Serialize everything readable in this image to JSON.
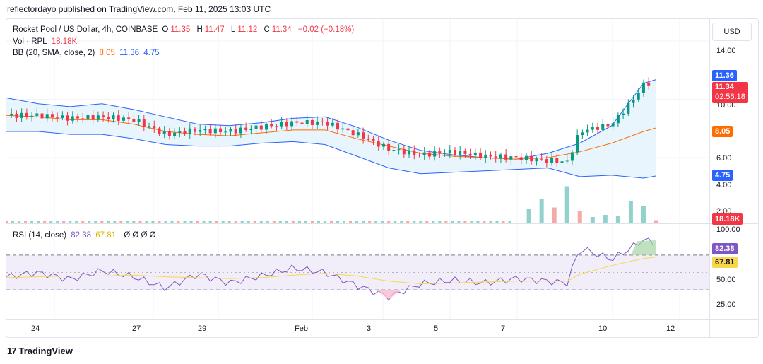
{
  "publisher": "reflectordayo published on TradingView.com, Feb 11, 2025 13:03 UTC",
  "legend": {
    "symbol": "Rocket Pool / US Dollar, 4h, COINBASE",
    "o_label": "O",
    "o_value": "11.35",
    "h_label": "H",
    "h_value": "11.47",
    "l_label": "L",
    "l_value": "11.12",
    "c_label": "C",
    "c_value": "11.34",
    "change": "−0.02 (−0.18%)",
    "vol_label": "Vol · RPL",
    "vol_value": "18.18K",
    "bb_label": "BB (20, SMA, close, 2)",
    "bb_basis": "8.05",
    "bb_upper": "11.36",
    "bb_lower": "4.75",
    "rsi_label": "RSI (14, close)",
    "rsi_value": "82.38",
    "rsi_ma": "67.81",
    "rsi_extra": "Ø  Ø  Ø  Ø"
  },
  "currency_button": "USD",
  "price_axis": {
    "ticks": [
      "14.00",
      "10.00",
      "6.00",
      "4.00",
      "2.00"
    ]
  },
  "rsi_axis": {
    "ticks": [
      "100.00",
      "50.00",
      "25.00"
    ]
  },
  "time_axis": [
    "24",
    "27",
    "29",
    "Feb",
    "3",
    "5",
    "7",
    "10",
    "12"
  ],
  "tags": {
    "bb_upper": "11.36",
    "last_price": "11.34",
    "countdown": "02:56:18",
    "bb_basis": "8.05",
    "bb_lower": "4.75",
    "volume": "18.18K",
    "rsi": "82.38",
    "rsi_ma": "67.81"
  },
  "colors": {
    "up": "#089981",
    "down": "#f23645",
    "bb_band": "#2962ff",
    "bb_basis": "#ff6d00",
    "rsi_line": "#7e57c2",
    "rsi_ma": "#f7d84a",
    "rsi_zone": "#ede7f6",
    "band_fill": "#e3f2fd"
  },
  "footer": {
    "logo": "17",
    "brand": "TradingView"
  },
  "chart_data": {
    "type": "line",
    "title": "Rocket Pool / US Dollar, 4h, COINBASE",
    "price_axis_range": [
      1.5,
      15.5
    ],
    "x_labels": [
      "24",
      "27",
      "29",
      "Feb",
      "3",
      "5",
      "7",
      "10",
      "12"
    ],
    "series": [
      {
        "name": "BB (20, SMA, close, 2)",
        "x": [
          0,
          5,
          10,
          15,
          20,
          25,
          30,
          35,
          40,
          45,
          50,
          55,
          60,
          65,
          70,
          75,
          80,
          85,
          90,
          95,
          100,
          102
        ],
        "values": [
          10.1,
          9.7,
          9.5,
          9.7,
          9.3,
          8.8,
          8.3,
          8.2,
          8.4,
          8.7,
          8.8,
          8.1,
          7.2,
          6.5,
          6.2,
          6.0,
          5.9,
          6.3,
          7.0,
          8.2,
          11.1,
          11.36
        ]
      },
      {
        "name": "BB basis",
        "x": [
          0,
          5,
          10,
          15,
          20,
          25,
          30,
          35,
          40,
          45,
          50,
          55,
          60,
          65,
          70,
          75,
          80,
          85,
          90,
          95,
          100,
          102
        ],
        "values": [
          8.9,
          8.8,
          8.6,
          8.6,
          8.3,
          7.8,
          7.6,
          7.5,
          7.7,
          7.9,
          7.9,
          7.3,
          6.8,
          6.3,
          6.1,
          6.0,
          5.9,
          6.0,
          6.4,
          7.0,
          7.8,
          8.05
        ]
      },
      {
        "name": "BB lower",
        "x": [
          0,
          5,
          10,
          15,
          20,
          25,
          30,
          35,
          40,
          45,
          50,
          55,
          60,
          65,
          70,
          75,
          80,
          85,
          90,
          95,
          100,
          102
        ],
        "values": [
          7.8,
          7.8,
          7.6,
          7.6,
          7.3,
          6.9,
          6.8,
          6.8,
          7.0,
          7.1,
          6.9,
          6.1,
          5.3,
          4.9,
          5.0,
          5.1,
          5.2,
          5.3,
          4.7,
          4.8,
          4.6,
          4.75
        ]
      },
      {
        "name": "Close",
        "x": [
          0,
          5,
          10,
          15,
          20,
          25,
          30,
          35,
          40,
          45,
          50,
          55,
          60,
          65,
          70,
          75,
          80,
          85,
          88,
          90,
          95,
          98,
          100,
          102
        ],
        "values": [
          8.9,
          8.9,
          8.7,
          8.8,
          8.6,
          7.6,
          7.9,
          7.8,
          8.1,
          8.4,
          8.4,
          7.6,
          6.6,
          6.2,
          6.4,
          6.1,
          6.0,
          5.8,
          5.7,
          7.8,
          8.3,
          9.8,
          11.0,
          11.34
        ]
      }
    ],
    "volume": {
      "x": [
        82,
        84,
        86,
        88,
        90,
        92,
        94,
        96,
        98,
        100,
        102
      ],
      "values": [
        2.8,
        4.6,
        3.0,
        7.0,
        2.3,
        1.2,
        1.6,
        1.4,
        4.2,
        3.2,
        0.6
      ]
    },
    "rsi": {
      "range": [
        0,
        100
      ],
      "levels": [
        70,
        30
      ],
      "x": [
        0,
        5,
        10,
        15,
        20,
        25,
        30,
        35,
        40,
        45,
        50,
        55,
        60,
        65,
        70,
        75,
        80,
        85,
        88,
        90,
        95,
        98,
        100,
        102
      ],
      "values": [
        45,
        50,
        42,
        52,
        45,
        32,
        48,
        38,
        46,
        55,
        50,
        35,
        22,
        37,
        41,
        38,
        43,
        40,
        38,
        78,
        65,
        78,
        88,
        82.38
      ],
      "ma": [
        44,
        45,
        46,
        46,
        47,
        45,
        44,
        43,
        44,
        47,
        49,
        46,
        40,
        37,
        38,
        39,
        40,
        40,
        40,
        48,
        58,
        63,
        66,
        67.81
      ]
    }
  }
}
